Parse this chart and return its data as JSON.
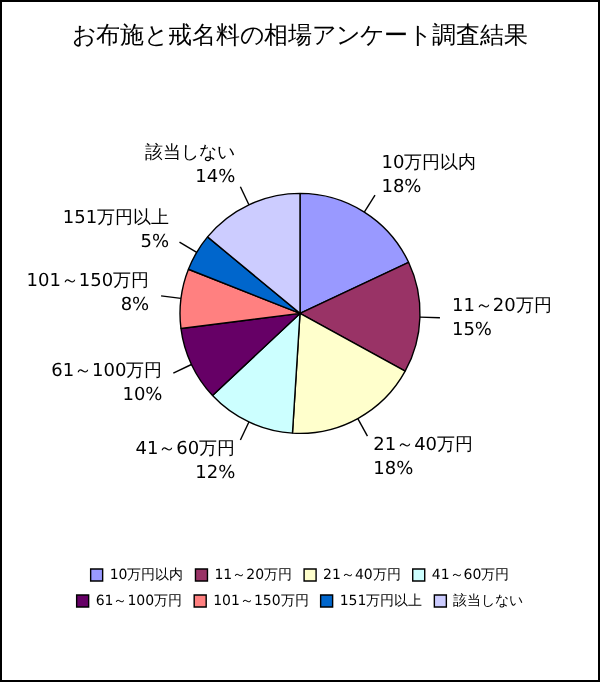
{
  "chart_data": {
    "type": "pie",
    "title": "お布施と戒名料の相場アンケート調査結果",
    "categories": [
      "10万円以内",
      "11～20万円",
      "21～40万円",
      "41～60万円",
      "61～100万円",
      "101～150万円",
      "151万円以上",
      "該当しない"
    ],
    "values": [
      18,
      15,
      18,
      12,
      10,
      8,
      5,
      14
    ],
    "value_labels": [
      "18%",
      "15%",
      "18%",
      "12%",
      "10%",
      "8%",
      "5%",
      "14%"
    ],
    "colors": [
      "#9999ff",
      "#993366",
      "#ffffcc",
      "#ccffff",
      "#660066",
      "#ff8080",
      "#0066cc",
      "#ccccff"
    ],
    "legend": "bottom"
  }
}
